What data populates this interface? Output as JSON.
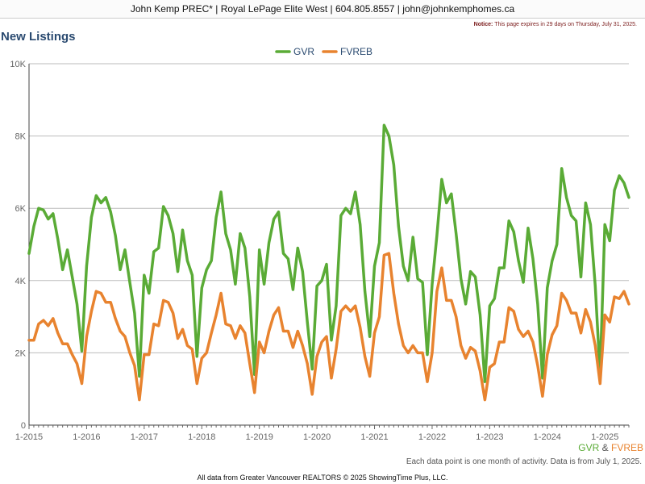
{
  "header": {
    "title": "John Kemp PREC* | Royal LePage Elite West | 604.805.8557 | john@johnkemphomes.ca"
  },
  "notice": {
    "label": "Notice:",
    "text": "This page expires in 29 days on Thursday, July 31, 2025."
  },
  "page_title": "New Listings",
  "source_label": {
    "gvr": "GVR",
    "amp": " & ",
    "fvreb": "FVREB"
  },
  "footer": {
    "note": "Each data point is one month of activity. Data is from July 1, 2025.",
    "credit": "All data from Greater Vancouver REALTORS © 2025 ShowingTime Plus, LLC."
  },
  "colors": {
    "gvr": "#5aab36",
    "fvreb": "#e8832f",
    "grid": "#bbbbbb",
    "axis_text": "#666666"
  },
  "chart_data": {
    "type": "line",
    "title": "",
    "xlabel": "",
    "ylabel": "",
    "x_start": "2015-01",
    "x_frequency": "monthly",
    "xlim": [
      "2015-01",
      "2025-06"
    ],
    "ylim": [
      0,
      10000
    ],
    "y_ticks": [
      0,
      2000,
      4000,
      6000,
      8000,
      10000
    ],
    "y_tick_labels": [
      "0",
      "2K",
      "4K",
      "6K",
      "8K",
      "10K"
    ],
    "x_ticks": [
      "2015-01",
      "2016-01",
      "2017-01",
      "2018-01",
      "2019-01",
      "2020-01",
      "2021-01",
      "2022-01",
      "2023-01",
      "2024-01",
      "2025-01"
    ],
    "x_tick_labels": [
      "1-2015",
      "1-2016",
      "1-2017",
      "1-2018",
      "1-2019",
      "1-2020",
      "1-2021",
      "1-2022",
      "1-2023",
      "1-2024",
      "1-2025"
    ],
    "grid": true,
    "legend_position": "top-center",
    "series": [
      {
        "name": "GVR",
        "color": "#5aab36",
        "values": [
          4750,
          5500,
          6000,
          5950,
          5700,
          5850,
          5150,
          4300,
          4850,
          4100,
          3350,
          2050,
          4400,
          5750,
          6350,
          6150,
          6300,
          5900,
          5250,
          4300,
          4850,
          3950,
          3100,
          1350,
          4150,
          3650,
          4800,
          4900,
          6050,
          5800,
          5300,
          4250,
          5400,
          4550,
          4150,
          1900,
          3800,
          4300,
          4550,
          5750,
          6450,
          5300,
          4850,
          3900,
          5300,
          4900,
          3550,
          1400,
          4850,
          3900,
          5050,
          5700,
          5900,
          4750,
          4600,
          3750,
          4900,
          4250,
          2850,
          1550,
          3850,
          4000,
          4450,
          2350,
          3300,
          5800,
          6000,
          5850,
          6450,
          5550,
          3700,
          2450,
          4400,
          5050,
          8300,
          8000,
          7200,
          5500,
          4400,
          4000,
          5200,
          4050,
          3950,
          1950,
          3900,
          5250,
          6800,
          6150,
          6400,
          5300,
          4050,
          3350,
          4250,
          4100,
          3050,
          1200,
          3300,
          3500,
          4350,
          4350,
          5650,
          5350,
          4550,
          3950,
          5450,
          4600,
          3350,
          1300,
          3800,
          4550,
          5000,
          7100,
          6300,
          5800,
          5650,
          4100,
          6150,
          5550,
          3850,
          1400,
          5550,
          5100,
          6500,
          6900,
          6700,
          6300
        ]
      },
      {
        "name": "FVREB",
        "color": "#e8832f",
        "values": [
          2350,
          2350,
          2800,
          2900,
          2750,
          2950,
          2550,
          2250,
          2250,
          1950,
          1700,
          1150,
          2450,
          3150,
          3700,
          3650,
          3400,
          3400,
          2950,
          2600,
          2450,
          2000,
          1650,
          700,
          1950,
          1950,
          2800,
          2750,
          3450,
          3400,
          3100,
          2400,
          2650,
          2200,
          2100,
          1150,
          1850,
          2000,
          2550,
          3050,
          3650,
          2800,
          2750,
          2400,
          2750,
          2550,
          1700,
          900,
          2300,
          2000,
          2600,
          3050,
          3250,
          2600,
          2600,
          2150,
          2600,
          2200,
          1700,
          850,
          1900,
          2300,
          2450,
          1300,
          2100,
          3150,
          3300,
          3150,
          3300,
          2700,
          1900,
          1350,
          2550,
          3000,
          4700,
          4750,
          3650,
          2800,
          2200,
          2000,
          2200,
          2000,
          2000,
          1200,
          2000,
          3700,
          4350,
          3450,
          3450,
          3000,
          2200,
          1850,
          2150,
          2050,
          1500,
          700,
          1600,
          1700,
          2300,
          2300,
          3250,
          3150,
          2650,
          2450,
          2600,
          2300,
          1650,
          800,
          1950,
          2500,
          2750,
          3650,
          3450,
          3100,
          3100,
          2550,
          3200,
          2850,
          2200,
          1150,
          3050,
          2850,
          3550,
          3500,
          3700,
          3350
        ]
      }
    ]
  }
}
